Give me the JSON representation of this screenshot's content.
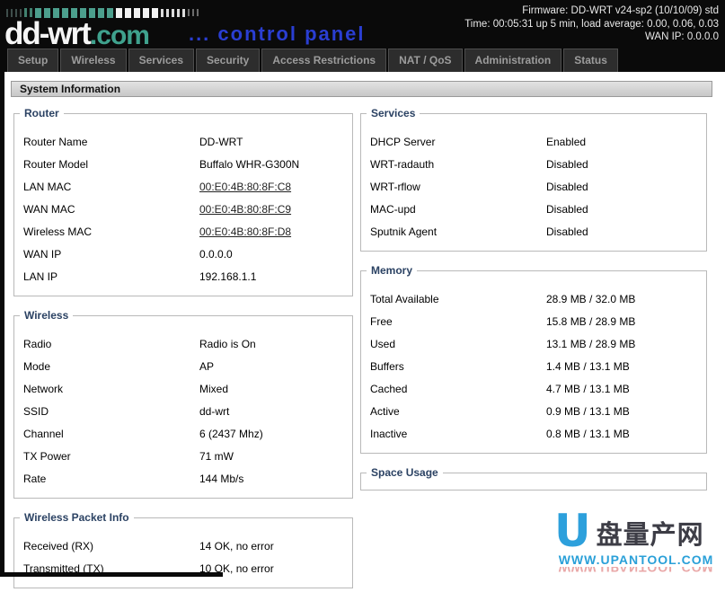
{
  "header": {
    "logo_main": "dd-wrt",
    "logo_suffix": ".com",
    "tagline": "... control panel",
    "info_lines": [
      "Firmware: DD-WRT v24-sp2 (10/10/09) std",
      "Time: 00:05:31 up 5 min, load average: 0.00, 0.06, 0.03",
      "WAN IP: 0.0.0.0"
    ]
  },
  "tabs": [
    {
      "label": "Setup"
    },
    {
      "label": "Wireless"
    },
    {
      "label": "Services"
    },
    {
      "label": "Security"
    },
    {
      "label": "Access Restrictions"
    },
    {
      "label": "NAT / QoS"
    },
    {
      "label": "Administration"
    },
    {
      "label": "Status"
    }
  ],
  "page_title": "System Information",
  "sections": {
    "router": {
      "legend": "Router",
      "rows": [
        {
          "label": "Router Name",
          "value": "DD-WRT"
        },
        {
          "label": "Router Model",
          "value": "Buffalo WHR-G300N"
        },
        {
          "label": "LAN MAC",
          "value": "00:E0:4B:80:8F:C8"
        },
        {
          "label": "WAN MAC",
          "value": "00:E0:4B:80:8F:C9"
        },
        {
          "label": "Wireless MAC",
          "value": "00:E0:4B:80:8F:D8"
        },
        {
          "label": "WAN IP",
          "value": "0.0.0.0"
        },
        {
          "label": "LAN IP",
          "value": "192.168.1.1"
        }
      ]
    },
    "wireless": {
      "legend": "Wireless",
      "rows": [
        {
          "label": "Radio",
          "value": "Radio is On"
        },
        {
          "label": "Mode",
          "value": "AP"
        },
        {
          "label": "Network",
          "value": "Mixed"
        },
        {
          "label": "SSID",
          "value": "dd-wrt"
        },
        {
          "label": "Channel",
          "value": "6 (2437 Mhz)"
        },
        {
          "label": "TX Power",
          "value": "71 mW"
        },
        {
          "label": "Rate",
          "value": "144 Mb/s"
        }
      ]
    },
    "packet": {
      "legend": "Wireless Packet Info",
      "rows": [
        {
          "label": "Received (RX)",
          "value": "14 OK, no error"
        },
        {
          "label": "Transmitted (TX)",
          "value": "10 OK, no error"
        }
      ]
    },
    "services": {
      "legend": "Services",
      "rows": [
        {
          "label": "DHCP Server",
          "value": "Enabled"
        },
        {
          "label": "WRT-radauth",
          "value": "Disabled"
        },
        {
          "label": "WRT-rflow",
          "value": "Disabled"
        },
        {
          "label": "MAC-upd",
          "value": "Disabled"
        },
        {
          "label": "Sputnik Agent",
          "value": "Disabled"
        }
      ]
    },
    "memory": {
      "legend": "Memory",
      "rows": [
        {
          "label": "Total Available",
          "value": "28.9 MB / 32.0 MB"
        },
        {
          "label": "Free",
          "value": "15.8 MB / 28.9 MB"
        },
        {
          "label": "Used",
          "value": "13.1 MB / 28.9 MB"
        },
        {
          "label": "Buffers",
          "value": "1.4 MB / 13.1 MB"
        },
        {
          "label": "Cached",
          "value": "4.7 MB / 13.1 MB"
        },
        {
          "label": "Active",
          "value": "0.9 MB / 13.1 MB"
        },
        {
          "label": "Inactive",
          "value": "0.8 MB / 13.1 MB"
        }
      ]
    },
    "space": {
      "legend": "Space Usage",
      "rows": []
    }
  },
  "watermark": {
    "logo_letter": "U",
    "cn_text": "盘量产网",
    "url": "WWW.UPANTOOL.COM"
  },
  "colors": {
    "header_bg": "#0a0a0a",
    "logo_teal": "#3fa18d",
    "tagline_blue": "#2a3ed2",
    "tab_bg": "#2d2d2d",
    "tab_text": "#9c9c9c",
    "titlebar_bg": "#d2d2d2",
    "legend_navy": "#2b4263",
    "fieldset_border": "#b9b9b9",
    "watermark_blue": "#2da0dc",
    "watermark_red": "#d86060"
  }
}
